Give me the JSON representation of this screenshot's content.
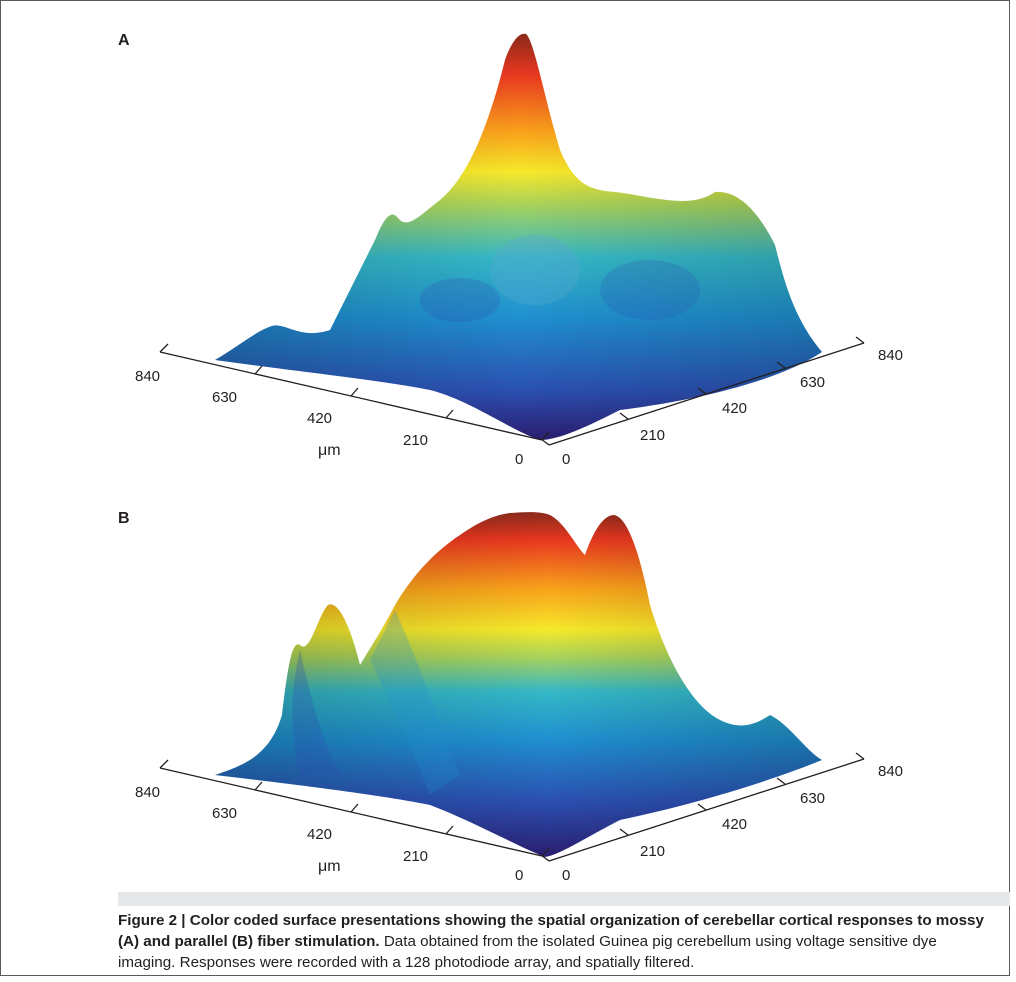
{
  "figure": {
    "panels": [
      {
        "letter": "A",
        "left_axis_ticks": [
          "840",
          "630",
          "420",
          "210",
          "0"
        ],
        "right_axis_ticks": [
          "0",
          "210",
          "420",
          "630",
          "840"
        ],
        "unit_label": "μm"
      },
      {
        "letter": "B",
        "left_axis_ticks": [
          "840",
          "630",
          "420",
          "210",
          "0"
        ],
        "right_axis_ticks": [
          "0",
          "210",
          "420",
          "630",
          "840"
        ],
        "unit_label": "μm"
      }
    ],
    "colormap": [
      "#2a1d6e",
      "#2b4fb0",
      "#1f8fd0",
      "#35b8c6",
      "#a9d35a",
      "#f6e92a",
      "#f9a11b",
      "#e8371f",
      "#8a2a1b"
    ]
  },
  "caption": {
    "label": "Figure 2 | Color coded surface presentations showing the spatial organization of cerebellar cortical responses to mossy (A) and parallel (B) fiber stimulation.",
    "body": "Data obtained from the isolated Guinea pig cerebellum using voltage sensitive dye imaging. Responses were recorded with a 128 photodiode array, and spatially filtered."
  }
}
